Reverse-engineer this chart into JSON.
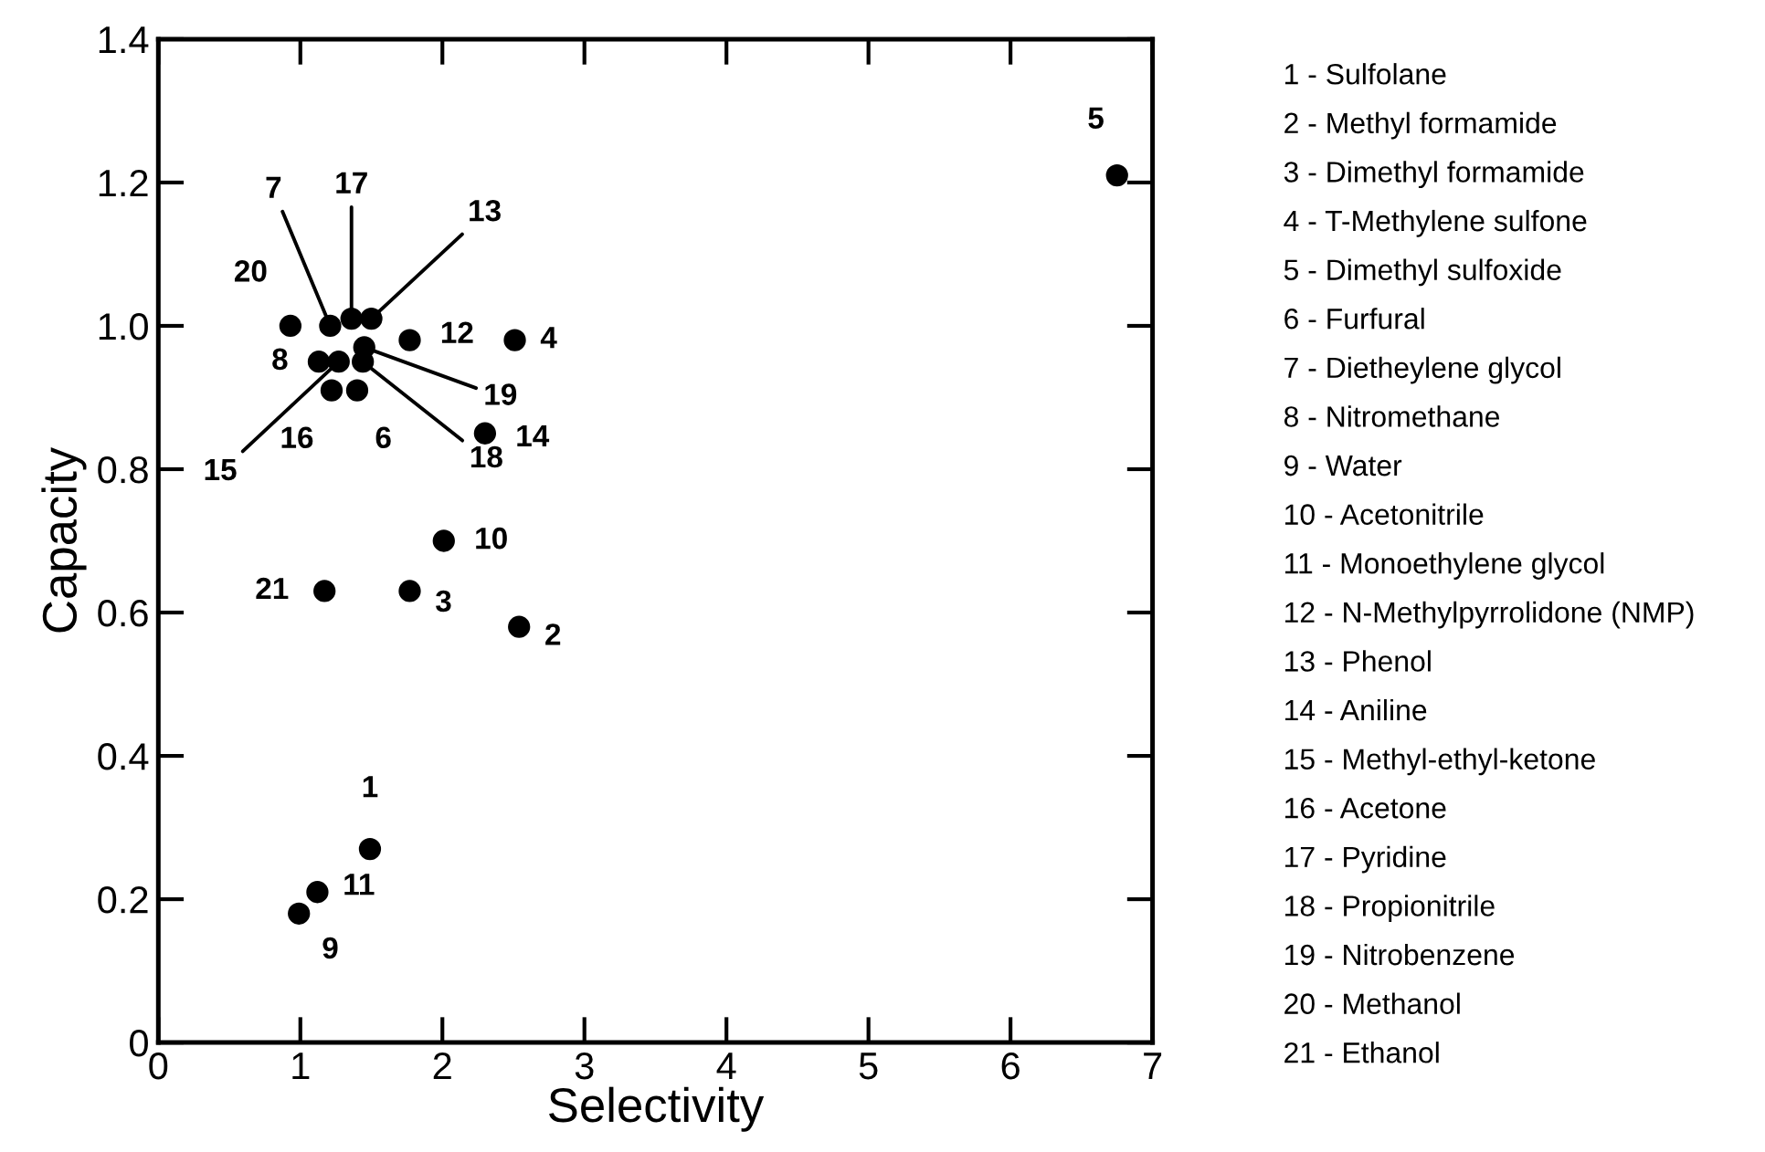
{
  "chart_data": {
    "type": "scatter",
    "xlabel": "Selectivity",
    "ylabel": "Capacity",
    "xlim": [
      0,
      7
    ],
    "ylim": [
      0,
      1.4
    ],
    "xticks": [
      0,
      1,
      2,
      3,
      4,
      5,
      6,
      7
    ],
    "yticks": [
      0,
      0.2,
      0.4,
      0.6,
      0.8,
      {
        "value": 1.0,
        "label": "1.0"
      },
      1.2,
      1.4
    ],
    "grid": false,
    "series": [
      {
        "color": "#000000",
        "x": [
          1.49,
          2.54,
          1.77,
          2.51,
          6.75,
          1.4,
          1.21,
          1.13,
          0.99,
          2.01,
          1.12,
          1.77,
          1.5,
          2.3,
          1.27,
          1.22,
          1.36,
          1.44,
          1.45,
          0.93,
          1.17
        ],
        "values": [
          0.27,
          0.58,
          0.63,
          0.98,
          1.21,
          0.91,
          1.0,
          0.95,
          0.18,
          0.7,
          0.21,
          0.98,
          1.01,
          0.85,
          0.95,
          0.91,
          1.01,
          0.95,
          0.97,
          1.0,
          0.63
        ]
      }
    ],
    "annotations": [
      {
        "text": "1",
        "x": 1.49,
        "y": 0.27
      },
      {
        "text": "2",
        "x": 2.54,
        "y": 0.58
      },
      {
        "text": "3",
        "x": 1.77,
        "y": 0.63
      },
      {
        "text": "4",
        "x": 2.51,
        "y": 0.98
      },
      {
        "text": "5",
        "x": 6.75,
        "y": 1.21
      },
      {
        "text": "6",
        "x": 1.4,
        "y": 0.91
      },
      {
        "text": "7",
        "x": 1.21,
        "y": 1.0
      },
      {
        "text": "8",
        "x": 1.13,
        "y": 0.95
      },
      {
        "text": "9",
        "x": 0.99,
        "y": 0.18
      },
      {
        "text": "10",
        "x": 2.01,
        "y": 0.7
      },
      {
        "text": "11",
        "x": 1.12,
        "y": 0.21
      },
      {
        "text": "12",
        "x": 1.77,
        "y": 0.98
      },
      {
        "text": "13",
        "x": 1.5,
        "y": 1.01
      },
      {
        "text": "14",
        "x": 2.3,
        "y": 0.85
      },
      {
        "text": "15",
        "x": 1.27,
        "y": 0.95
      },
      {
        "text": "16",
        "x": 1.22,
        "y": 0.91
      },
      {
        "text": "17",
        "x": 1.36,
        "y": 1.01
      },
      {
        "text": "18",
        "x": 1.44,
        "y": 0.95
      },
      {
        "text": "19",
        "x": 1.45,
        "y": 0.97
      },
      {
        "text": "20",
        "x": 0.93,
        "y": 1.0
      },
      {
        "text": "21",
        "x": 1.17,
        "y": 0.63
      },
      "1 - Sulfolane",
      "2 - Methyl formamide",
      "3 - Dimethyl formamide",
      "4 - T-Methylene sulfone",
      "5 - Dimethyl sulfoxide",
      "6 - Furfural",
      "7 - Dietheylene glycol",
      "8 - Nitromethane",
      "9 - Water",
      "10 - Acetonitrile",
      "11 - Monoethylene glycol",
      "12 - N-Methylpyrrolidone (NMP)",
      "13 - Phenol",
      "14 - Aniline",
      "15 - Methyl-ethyl-ketone",
      "16 - Acetone",
      "17 - Pyridine",
      "18 - Propionitrile",
      "19 - Nitrobenzene",
      "20 - Methanol",
      "21 - Ethanol"
    ]
  }
}
